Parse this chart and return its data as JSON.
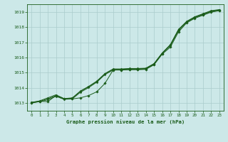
{
  "title": "Graphe pression niveau de la mer (hPa)",
  "bg_color": "#cce8e8",
  "grid_color": "#aacccc",
  "line_color": "#1a5c1a",
  "xlim": [
    -0.5,
    23.5
  ],
  "ylim": [
    1012.5,
    1019.5
  ],
  "yticks": [
    1013,
    1014,
    1015,
    1016,
    1017,
    1018,
    1019
  ],
  "xticks": [
    0,
    1,
    2,
    3,
    4,
    5,
    6,
    7,
    8,
    9,
    10,
    11,
    12,
    13,
    14,
    15,
    16,
    17,
    18,
    19,
    20,
    21,
    22,
    23
  ],
  "smooth1": [
    1013.05,
    1013.15,
    1013.35,
    1013.55,
    1013.3,
    1013.35,
    1013.8,
    1014.1,
    1014.45,
    1014.95,
    1015.25,
    1015.25,
    1015.28,
    1015.28,
    1015.3,
    1015.6,
    1016.3,
    1016.85,
    1017.85,
    1018.38,
    1018.68,
    1018.88,
    1019.08,
    1019.15
  ],
  "smooth2": [
    1013.05,
    1013.12,
    1013.28,
    1013.5,
    1013.28,
    1013.32,
    1013.78,
    1014.08,
    1014.42,
    1014.92,
    1015.22,
    1015.22,
    1015.25,
    1015.25,
    1015.28,
    1015.58,
    1016.28,
    1016.82,
    1017.82,
    1018.35,
    1018.65,
    1018.85,
    1019.05,
    1019.12
  ],
  "smooth3": [
    1013.02,
    1013.1,
    1013.22,
    1013.45,
    1013.25,
    1013.28,
    1013.72,
    1014.02,
    1014.38,
    1014.88,
    1015.18,
    1015.18,
    1015.22,
    1015.22,
    1015.25,
    1015.55,
    1016.25,
    1016.78,
    1017.78,
    1018.32,
    1018.62,
    1018.82,
    1019.02,
    1019.1
  ],
  "dip_line": [
    1013.0,
    1013.12,
    1013.1,
    1013.5,
    1013.28,
    1013.28,
    1013.35,
    1013.5,
    1013.75,
    1014.3,
    1015.18,
    1015.18,
    1015.2,
    1015.2,
    1015.22,
    1015.52,
    1016.22,
    1016.68,
    1017.68,
    1018.28,
    1018.58,
    1018.78,
    1018.98,
    1019.08
  ]
}
